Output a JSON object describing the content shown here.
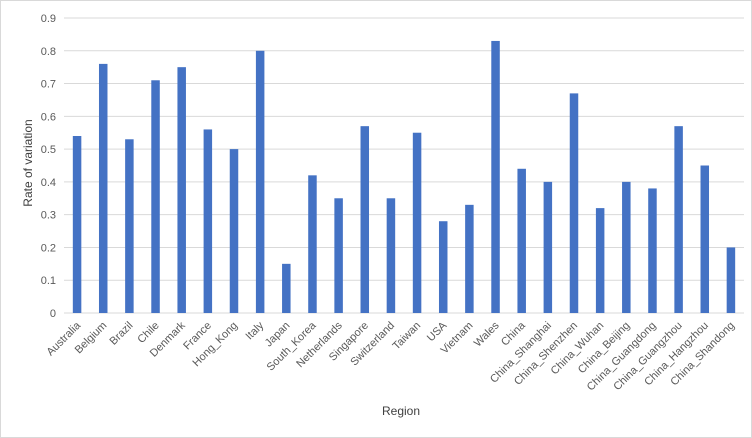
{
  "chart_data": {
    "type": "bar",
    "title": "",
    "xlabel": "Region",
    "ylabel": "Rate of variation",
    "ylim": [
      0,
      0.9
    ],
    "yticks": [
      0,
      0.1,
      0.2,
      0.3,
      0.4,
      0.5,
      0.6,
      0.7,
      0.8,
      0.9
    ],
    "ytick_labels": [
      "0",
      "0.1",
      "0.2",
      "0.3",
      "0.4",
      "0.5",
      "0.6",
      "0.7",
      "0.8",
      "0.9"
    ],
    "grid": "horizontal",
    "legend": "none",
    "bar_color": "#4472C4",
    "grid_color": "#d9d9d9",
    "categories": [
      "Australia",
      "Belgium",
      "Brazil",
      "Chile",
      "Denmark",
      "France",
      "Hong_Kong",
      "Italy",
      "Japan",
      "South_Korea",
      "Netherlands",
      "Singapore",
      "Switzerland",
      "Taiwan",
      "USA",
      "Vietnam",
      "Wales",
      "China",
      "China_Shanghai",
      "China_Shenzhen",
      "China_Wuhan",
      "China_Beijing",
      "China_Guangdong",
      "China_Guangzhou",
      "China_Hangzhou",
      "China_Shandong"
    ],
    "values": [
      0.54,
      0.76,
      0.53,
      0.71,
      0.75,
      0.56,
      0.5,
      0.8,
      0.15,
      0.42,
      0.35,
      0.57,
      0.35,
      0.55,
      0.28,
      0.33,
      0.83,
      0.44,
      0.4,
      0.67,
      0.32,
      0.4,
      0.38,
      0.57,
      0.45,
      0.2
    ]
  }
}
